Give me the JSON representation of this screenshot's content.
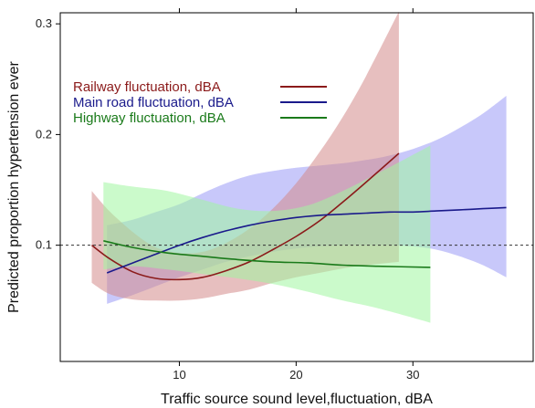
{
  "chart_data": {
    "type": "line",
    "title": "",
    "xlabel": "Traffic source sound level,fluctuation, dBA",
    "ylabel": "Predicted proportion hypertension ever",
    "xlim": [
      -0.2,
      40.3
    ],
    "ylim": [
      -0.005,
      0.31
    ],
    "x_ticks": [
      10,
      20,
      30
    ],
    "y_ticks": [
      0.1,
      0.2,
      0.3
    ],
    "x_tick_labels": [
      "10",
      "20",
      "30"
    ],
    "y_tick_labels": [
      "0.1",
      "0.2",
      "0.3"
    ],
    "reference_line": {
      "y": 0.1,
      "style": "dashed"
    },
    "legend": {
      "position": "top-left"
    },
    "series": [
      {
        "name": "Railway fluctuation, dBA",
        "color": "#8b1a1a",
        "band_color": "#d48a8a",
        "x": [
          2.5,
          4,
          6,
          8,
          10,
          12,
          14,
          16,
          18,
          20,
          22,
          24,
          26,
          28.8
        ],
        "y": [
          0.1,
          0.088,
          0.076,
          0.07,
          0.069,
          0.071,
          0.077,
          0.085,
          0.096,
          0.108,
          0.122,
          0.139,
          0.157,
          0.183
        ],
        "lower": [
          0.066,
          0.056,
          0.051,
          0.05,
          0.05,
          0.052,
          0.056,
          0.06,
          0.066,
          0.071,
          0.075,
          0.079,
          0.082,
          0.085
        ],
        "upper": [
          0.149,
          0.131,
          0.112,
          0.098,
          0.093,
          0.094,
          0.102,
          0.115,
          0.133,
          0.156,
          0.184,
          0.216,
          0.253,
          0.311
        ]
      },
      {
        "name": "Main road fluctuation, dBA",
        "color": "#1a1a8b",
        "band_color": "#9a9af5",
        "x": [
          3.8,
          6,
          8,
          10,
          12,
          14,
          16,
          18,
          20,
          22,
          24,
          26,
          28,
          30,
          32,
          34,
          36,
          38
        ],
        "y": [
          0.075,
          0.084,
          0.092,
          0.1,
          0.107,
          0.113,
          0.118,
          0.122,
          0.125,
          0.127,
          0.128,
          0.129,
          0.13,
          0.13,
          0.131,
          0.132,
          0.133,
          0.134
        ],
        "lower": [
          0.047,
          0.055,
          0.063,
          0.071,
          0.078,
          0.085,
          0.09,
          0.094,
          0.097,
          0.099,
          0.1,
          0.1,
          0.1,
          0.099,
          0.096,
          0.09,
          0.082,
          0.071
        ],
        "upper": [
          0.118,
          0.123,
          0.13,
          0.137,
          0.147,
          0.156,
          0.163,
          0.167,
          0.17,
          0.172,
          0.174,
          0.177,
          0.181,
          0.187,
          0.195,
          0.206,
          0.219,
          0.235
        ]
      },
      {
        "name": "Highway fluctuation, dBA",
        "color": "#1a7a1a",
        "band_color": "#a0f5a0",
        "x": [
          3.5,
          6,
          9,
          12,
          15,
          18,
          21,
          24,
          27,
          31.5
        ],
        "y": [
          0.104,
          0.098,
          0.093,
          0.09,
          0.087,
          0.085,
          0.084,
          0.082,
          0.081,
          0.08
        ],
        "lower": [
          0.078,
          0.081,
          0.078,
          0.074,
          0.07,
          0.065,
          0.058,
          0.05,
          0.043,
          0.03
        ],
        "upper": [
          0.157,
          0.153,
          0.149,
          0.141,
          0.133,
          0.131,
          0.136,
          0.149,
          0.165,
          0.19
        ]
      }
    ]
  }
}
